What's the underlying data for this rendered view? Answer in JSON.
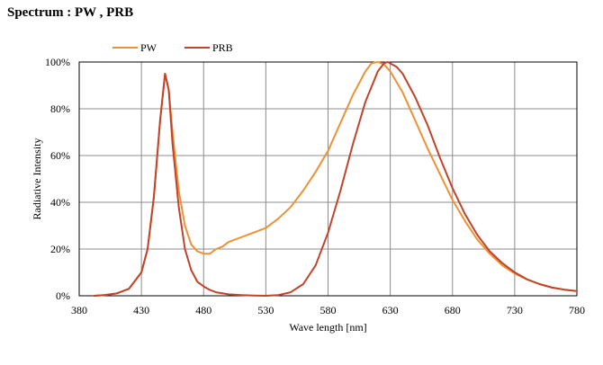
{
  "title": "Spectrum : PW , PRB",
  "chart_data": {
    "type": "line",
    "xlabel": "Wave length [nm]",
    "ylabel": "Radiative Intensity",
    "xlim": [
      380,
      780
    ],
    "ylim": [
      0,
      100
    ],
    "x_ticks": [
      380,
      430,
      480,
      530,
      580,
      630,
      680,
      730,
      780
    ],
    "y_ticks": [
      0,
      20,
      40,
      60,
      80,
      100
    ],
    "y_tick_labels": [
      "0%",
      "20%",
      "40%",
      "60%",
      "80%",
      "100%"
    ],
    "grid": true,
    "legend_position": "top-left",
    "series": [
      {
        "name": "PW",
        "color": "#ee9136",
        "points": [
          [
            392,
            0
          ],
          [
            400,
            0.3
          ],
          [
            410,
            1
          ],
          [
            420,
            3
          ],
          [
            430,
            10
          ],
          [
            435,
            20
          ],
          [
            440,
            42
          ],
          [
            445,
            75
          ],
          [
            449,
            95
          ],
          [
            452,
            88
          ],
          [
            455,
            70
          ],
          [
            460,
            45
          ],
          [
            465,
            30
          ],
          [
            470,
            22
          ],
          [
            475,
            19
          ],
          [
            480,
            18
          ],
          [
            485,
            18
          ],
          [
            490,
            20
          ],
          [
            495,
            21
          ],
          [
            500,
            23
          ],
          [
            510,
            25
          ],
          [
            520,
            27
          ],
          [
            530,
            29
          ],
          [
            540,
            33
          ],
          [
            550,
            38
          ],
          [
            560,
            45
          ],
          [
            570,
            53
          ],
          [
            580,
            62
          ],
          [
            590,
            74
          ],
          [
            600,
            86
          ],
          [
            610,
            96
          ],
          [
            615,
            99.5
          ],
          [
            620,
            100
          ],
          [
            625,
            99
          ],
          [
            630,
            96
          ],
          [
            640,
            87
          ],
          [
            650,
            75
          ],
          [
            660,
            63
          ],
          [
            670,
            52
          ],
          [
            680,
            41
          ],
          [
            690,
            32
          ],
          [
            700,
            24
          ],
          [
            710,
            18
          ],
          [
            720,
            13
          ],
          [
            730,
            9.5
          ],
          [
            740,
            7
          ],
          [
            750,
            5
          ],
          [
            760,
            3.5
          ],
          [
            770,
            2.6
          ],
          [
            780,
            2
          ]
        ]
      },
      {
        "name": "PRB",
        "color": "#c1432a",
        "points": [
          [
            392,
            0
          ],
          [
            400,
            0.3
          ],
          [
            410,
            1
          ],
          [
            420,
            3
          ],
          [
            430,
            10
          ],
          [
            435,
            20
          ],
          [
            440,
            42
          ],
          [
            445,
            75
          ],
          [
            449,
            95
          ],
          [
            452,
            88
          ],
          [
            455,
            65
          ],
          [
            460,
            38
          ],
          [
            465,
            20
          ],
          [
            470,
            11
          ],
          [
            475,
            6
          ],
          [
            480,
            4
          ],
          [
            485,
            2.5
          ],
          [
            490,
            1.5
          ],
          [
            500,
            0.6
          ],
          [
            510,
            0.3
          ],
          [
            520,
            0.1
          ],
          [
            530,
            0
          ],
          [
            540,
            0.3
          ],
          [
            550,
            1.5
          ],
          [
            560,
            5
          ],
          [
            570,
            13
          ],
          [
            580,
            27
          ],
          [
            590,
            45
          ],
          [
            600,
            65
          ],
          [
            610,
            83
          ],
          [
            620,
            96
          ],
          [
            625,
            99.5
          ],
          [
            628,
            100
          ],
          [
            635,
            98
          ],
          [
            640,
            95
          ],
          [
            650,
            85
          ],
          [
            660,
            73
          ],
          [
            670,
            59
          ],
          [
            680,
            46
          ],
          [
            690,
            35
          ],
          [
            700,
            26
          ],
          [
            710,
            19
          ],
          [
            720,
            14
          ],
          [
            730,
            10
          ],
          [
            740,
            7
          ],
          [
            750,
            5
          ],
          [
            760,
            3.5
          ],
          [
            770,
            2.6
          ],
          [
            780,
            2
          ]
        ]
      }
    ]
  }
}
